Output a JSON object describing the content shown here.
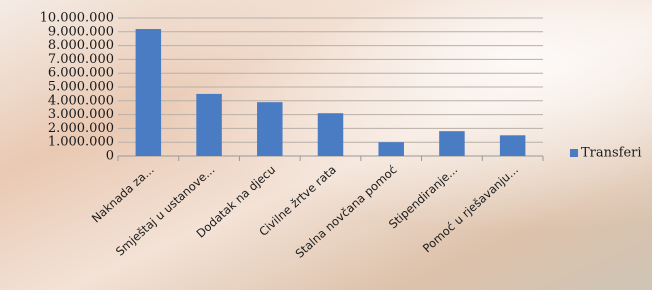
{
  "chart_data": {
    "type": "bar",
    "categories": [
      "Naknada za...",
      "Smještaj u ustanove...",
      "Dodatak na djecu",
      "Civilne žrtve rata",
      "Stalna novčana pomoć",
      "Stipendiranje...",
      "Pomoć u rješavanju..."
    ],
    "series": [
      {
        "name": "Transferi",
        "color": "#4a7cc4",
        "values": [
          9200000,
          4500000,
          3900000,
          3100000,
          1000000,
          1800000,
          1500000
        ]
      }
    ],
    "ylim": [
      0,
      10000000
    ],
    "yticks": [
      0,
      {
        "value": 1000000,
        "label": "1.000.000"
      },
      {
        "value": 2000000,
        "label": "2.000.000"
      },
      {
        "value": 3000000,
        "label": "3.000.000"
      },
      {
        "value": 4000000,
        "label": "4.000.000"
      },
      {
        "value": 5000000,
        "label": "5.000.000"
      },
      {
        "value": 6000000,
        "label": "6.000.000"
      },
      {
        "value": 7000000,
        "label": "7.000.000"
      },
      {
        "value": 8000000,
        "label": "8.000.000"
      },
      {
        "value": 9000000,
        "label": "9.000.000"
      },
      {
        "value": 10000000,
        "label": "10.000.000"
      }
    ],
    "grid": true,
    "legend": "right"
  }
}
